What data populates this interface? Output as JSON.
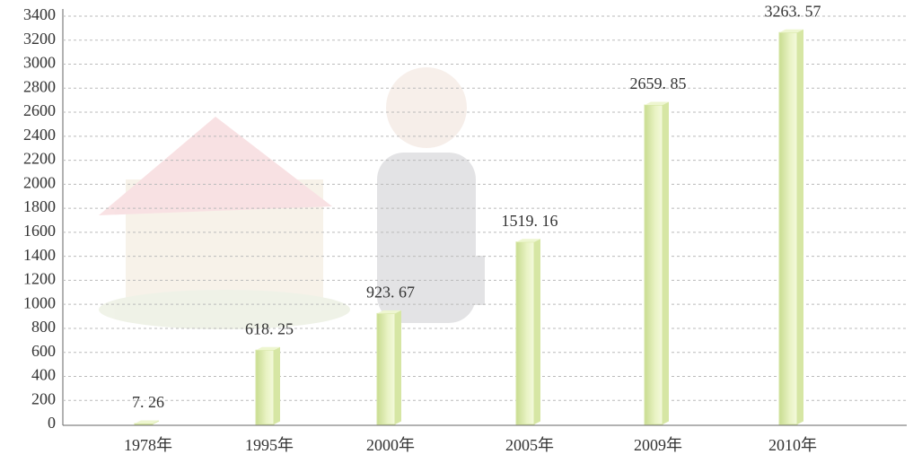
{
  "chart_data": {
    "type": "bar",
    "categories": [
      "1978年",
      "1995年",
      "2000年",
      "2005年",
      "2009年",
      "2010年"
    ],
    "values": [
      7.26,
      618.25,
      923.67,
      1519.16,
      2659.85,
      3263.57
    ],
    "value_labels": [
      "7. 26",
      "618. 25",
      "923. 67",
      "1519. 16",
      "2659. 85",
      "3263. 57"
    ],
    "color": "#d6e6a4",
    "ylim": [
      0,
      3400
    ],
    "yticks": [
      0,
      200,
      400,
      600,
      800,
      1000,
      1200,
      1400,
      1600,
      1800,
      2000,
      2200,
      2400,
      2600,
      2800,
      3000,
      3200,
      3400
    ],
    "grid": true
  }
}
